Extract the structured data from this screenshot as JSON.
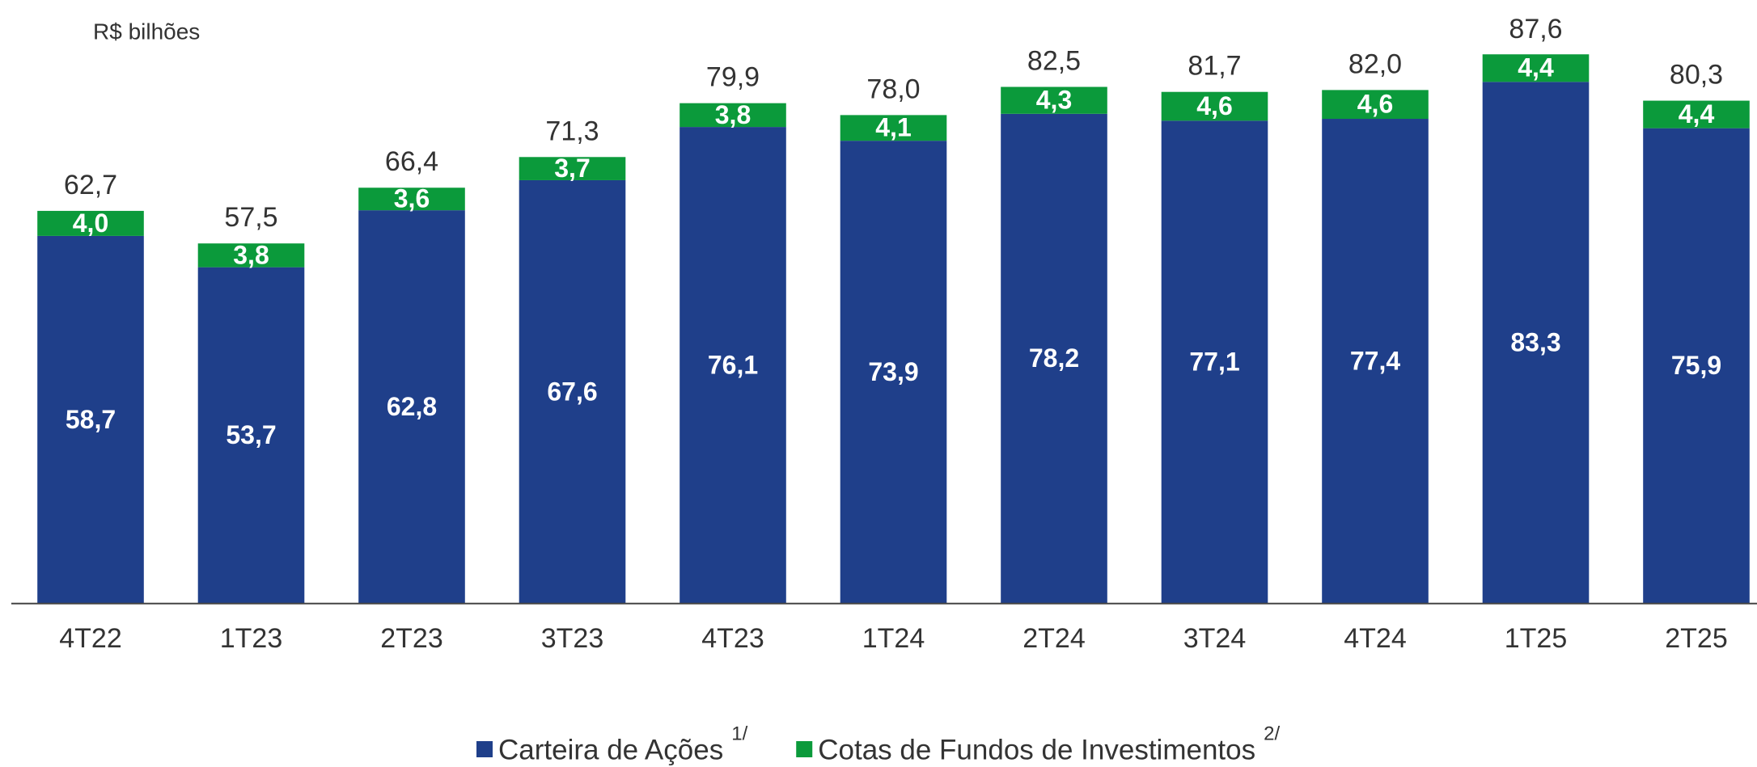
{
  "chart_data": {
    "type": "stacked_bar",
    "unit_label": "R$ bilhões",
    "categories": [
      "4T22",
      "1T23",
      "2T23",
      "3T23",
      "4T23",
      "1T24",
      "2T24",
      "3T24",
      "4T24",
      "1T25",
      "2T25"
    ],
    "series": [
      {
        "name": "Carteira de Ações",
        "footnote": "1/",
        "color": "#1f3f8a",
        "values": [
          58.7,
          53.7,
          62.8,
          67.6,
          76.1,
          73.9,
          78.2,
          77.1,
          77.4,
          83.3,
          75.9
        ],
        "value_labels": [
          "58,7",
          "53,7",
          "62,8",
          "67,6",
          "76,1",
          "73,9",
          "78,2",
          "77,1",
          "77,4",
          "83,3",
          "75,9"
        ]
      },
      {
        "name": "Cotas de Fundos de Investimentos",
        "footnote": "2/",
        "color": "#0b9a3b",
        "values": [
          4.0,
          3.8,
          3.6,
          3.7,
          3.8,
          4.1,
          4.3,
          4.6,
          4.6,
          4.4,
          4.4
        ],
        "value_labels": [
          "4,0",
          "3,8",
          "3,6",
          "3,7",
          "3,8",
          "4,1",
          "4,3",
          "4,6",
          "4,6",
          "4,4",
          "4,4"
        ]
      }
    ],
    "totals": [
      62.7,
      57.5,
      66.4,
      71.3,
      79.9,
      78.0,
      82.5,
      81.7,
      82.0,
      87.6,
      80.3
    ],
    "total_labels": [
      "62,7",
      "57,5",
      "66,4",
      "71,3",
      "79,9",
      "78,0",
      "82,5",
      "81,7",
      "82,0",
      "87,6",
      "80,3"
    ],
    "ylim": [
      0,
      90
    ],
    "legend": "bottom"
  }
}
